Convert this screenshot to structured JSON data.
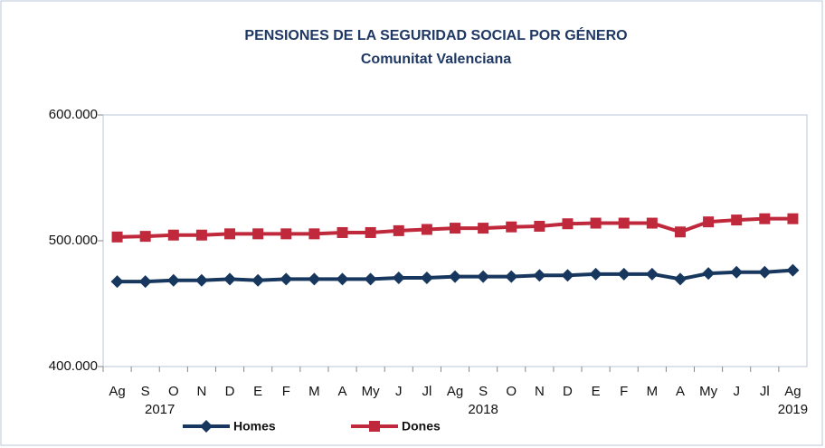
{
  "chart_data": {
    "type": "line",
    "title": "PENSIONES DE LA SEGURIDAD SOCIAL POR GÉNERO",
    "subtitle": "Comunitat Valenciana",
    "categories": [
      "Ag",
      "S",
      "O",
      "N",
      "D",
      "E",
      "F",
      "M",
      "A",
      "My",
      "J",
      "Jl",
      "Ag",
      "S",
      "O",
      "N",
      "D",
      "E",
      "F",
      "M",
      "A",
      "My",
      "J",
      "Jl",
      "Ag"
    ],
    "year_labels": [
      null,
      "2017",
      null,
      null,
      null,
      null,
      null,
      null,
      null,
      null,
      null,
      null,
      null,
      "2018",
      null,
      null,
      null,
      null,
      null,
      null,
      null,
      null,
      null,
      null,
      "2019"
    ],
    "ylim": [
      400000,
      600000
    ],
    "yticks": [
      {
        "value": 400000,
        "label": "400.000"
      },
      {
        "value": 500000,
        "label": "500.000"
      },
      {
        "value": 600000,
        "label": "600.000"
      }
    ],
    "grid": false,
    "legend": "bottom",
    "series": [
      {
        "name": "Homes",
        "color": "#17375e",
        "marker": "diamond",
        "values": [
          467500,
          467500,
          468500,
          468500,
          469500,
          468500,
          469500,
          469500,
          469500,
          469500,
          470500,
          470500,
          471500,
          471500,
          471500,
          472500,
          472500,
          473500,
          473500,
          473500,
          469500,
          474000,
          475000,
          475000,
          476500
        ]
      },
      {
        "name": "Dones",
        "color": "#c0283c",
        "marker": "square",
        "values": [
          503000,
          503500,
          504500,
          504500,
          505500,
          505500,
          505500,
          505500,
          506500,
          506500,
          508000,
          509000,
          510000,
          510000,
          511000,
          511500,
          513500,
          514000,
          514000,
          514000,
          507000,
          515000,
          516500,
          517500,
          517500
        ]
      }
    ]
  }
}
